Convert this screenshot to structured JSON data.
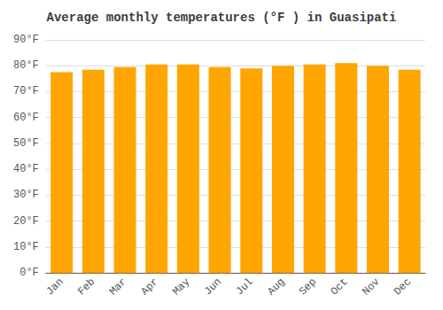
{
  "chart_data": {
    "type": "bar",
    "title": "Average monthly temperatures (°F ) in Guasipati",
    "categories": [
      "Jan",
      "Feb",
      "Mar",
      "Apr",
      "May",
      "Jun",
      "Jul",
      "Aug",
      "Sep",
      "Oct",
      "Nov",
      "Dec"
    ],
    "values": [
      77.5,
      78.5,
      79.5,
      80.5,
      80.5,
      79.5,
      79.0,
      80.0,
      80.5,
      81.0,
      80.0,
      78.5
    ],
    "color": "#FFA500",
    "ylim": [
      0,
      90
    ],
    "yticks": [
      {
        "value": 0,
        "label": "0°F"
      },
      {
        "value": 10,
        "label": "10°F"
      },
      {
        "value": 20,
        "label": "20°F"
      },
      {
        "value": 30,
        "label": "30°F"
      },
      {
        "value": 40,
        "label": "40°F"
      },
      {
        "value": 50,
        "label": "50°F"
      },
      {
        "value": 60,
        "label": "60°F"
      },
      {
        "value": 70,
        "label": "70°F"
      },
      {
        "value": 80,
        "label": "80°F"
      },
      {
        "value": 90,
        "label": "90°F"
      }
    ],
    "grid": true
  }
}
